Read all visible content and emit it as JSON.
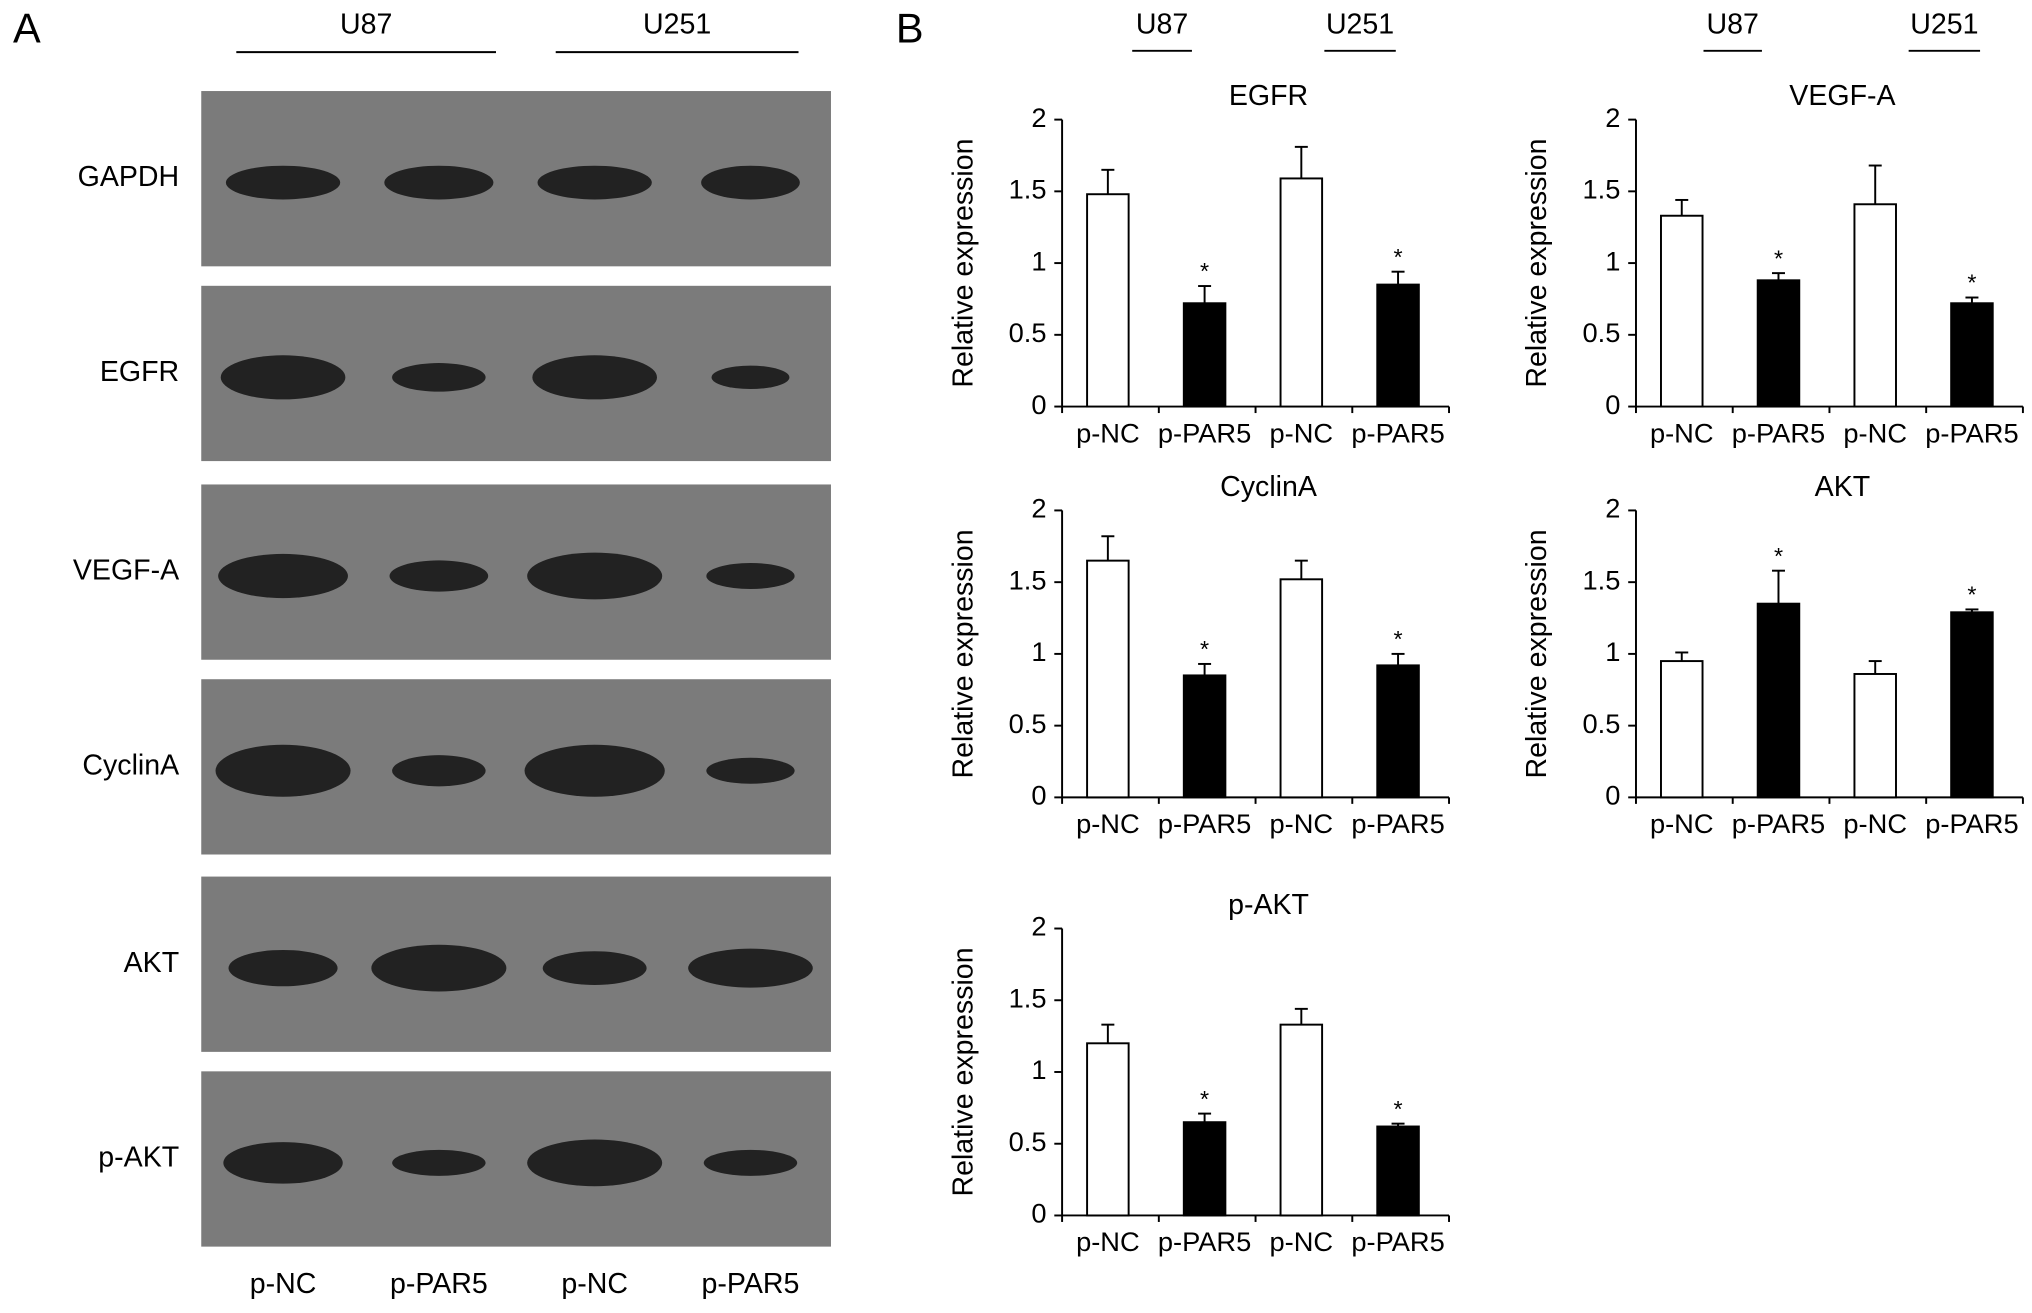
{
  "panel_labels": [
    "A",
    "B"
  ],
  "blot": {
    "cell_lines": [
      "U87",
      "U251"
    ],
    "proteins": [
      "GAPDH",
      "EGFR",
      "VEGF-A",
      "CyclinA",
      "AKT",
      "p-AKT"
    ],
    "lanes": [
      "p-NC",
      "p-PAR5",
      "p-NC",
      "p-PAR5"
    ]
  },
  "column_headers": [
    [
      "U87",
      "U251"
    ],
    [
      "U87",
      "U251"
    ]
  ],
  "chart_data": [
    {
      "type": "bar",
      "title": "EGFR",
      "y_label": "Relative expression",
      "categories": [
        "p-NC",
        "p-PAR5",
        "p-NC",
        "p-PAR5"
      ],
      "values": [
        1.48,
        0.72,
        1.59,
        0.85
      ],
      "errors": [
        0.17,
        0.12,
        0.22,
        0.09
      ],
      "colors": [
        "#ffffff",
        "#000000",
        "#ffffff",
        "#000000"
      ],
      "significance": [
        null,
        "*",
        null,
        "*"
      ],
      "ylim": [
        0,
        2
      ],
      "yticks": [
        0,
        0.5,
        1,
        1.5,
        2
      ]
    },
    {
      "type": "bar",
      "title": "VEGF-A",
      "y_label": "Relative expression",
      "categories": [
        "p-NC",
        "p-PAR5",
        "p-NC",
        "p-PAR5"
      ],
      "values": [
        1.33,
        0.88,
        1.41,
        0.72
      ],
      "errors": [
        0.11,
        0.05,
        0.27,
        0.04
      ],
      "colors": [
        "#ffffff",
        "#000000",
        "#ffffff",
        "#000000"
      ],
      "significance": [
        null,
        "*",
        null,
        "*"
      ],
      "ylim": [
        0,
        2
      ],
      "yticks": [
        0,
        0.5,
        1,
        1.5,
        2
      ]
    },
    {
      "type": "bar",
      "title": "CyclinA",
      "y_label": "Relative expression",
      "categories": [
        "p-NC",
        "p-PAR5",
        "p-NC",
        "p-PAR5"
      ],
      "values": [
        1.65,
        0.85,
        1.52,
        0.92
      ],
      "errors": [
        0.17,
        0.08,
        0.13,
        0.08
      ],
      "colors": [
        "#ffffff",
        "#000000",
        "#ffffff",
        "#000000"
      ],
      "significance": [
        null,
        "*",
        null,
        "*"
      ],
      "ylim": [
        0,
        2
      ],
      "yticks": [
        0,
        0.5,
        1,
        1.5,
        2
      ]
    },
    {
      "type": "bar",
      "title": "AKT",
      "y_label": "Relative expression",
      "categories": [
        "p-NC",
        "p-PAR5",
        "p-NC",
        "p-PAR5"
      ],
      "values": [
        0.95,
        1.35,
        0.86,
        1.29
      ],
      "errors": [
        0.06,
        0.23,
        0.09,
        0.02
      ],
      "colors": [
        "#ffffff",
        "#000000",
        "#ffffff",
        "#000000"
      ],
      "significance": [
        null,
        "*",
        null,
        "*"
      ],
      "ylim": [
        0,
        2
      ],
      "yticks": [
        0,
        0.5,
        1,
        1.5,
        2
      ]
    },
    {
      "type": "bar",
      "title": "p-AKT",
      "y_label": "Relative expression",
      "categories": [
        "p-NC",
        "p-PAR5",
        "p-NC",
        "p-PAR5"
      ],
      "values": [
        1.2,
        0.65,
        1.33,
        0.62
      ],
      "errors": [
        0.13,
        0.06,
        0.11,
        0.02
      ],
      "colors": [
        "#ffffff",
        "#000000",
        "#ffffff",
        "#000000"
      ],
      "significance": [
        null,
        "*",
        null,
        "*"
      ],
      "ylim": [
        0,
        2
      ],
      "yticks": [
        0,
        0.5,
        1,
        1.5,
        2
      ]
    }
  ]
}
